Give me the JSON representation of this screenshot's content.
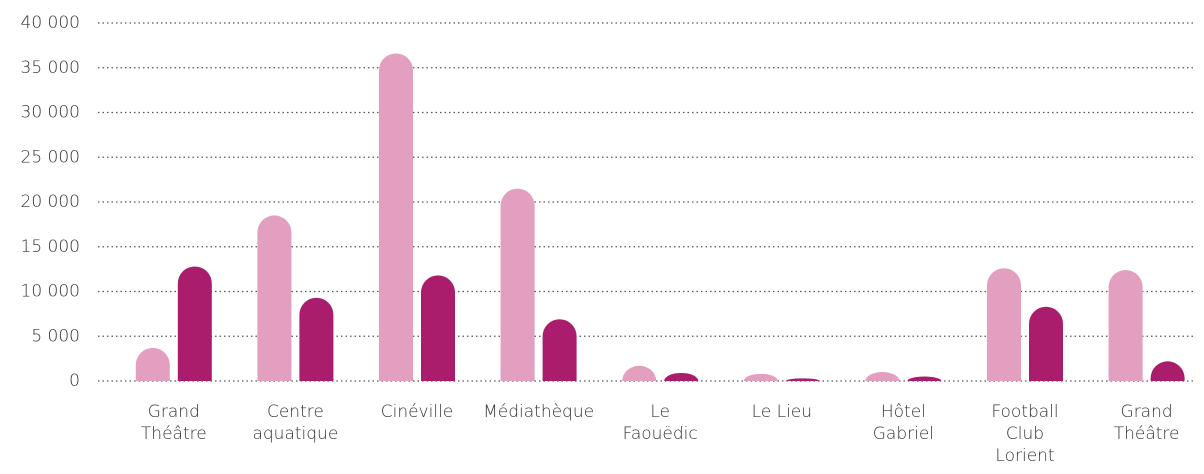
{
  "chart_data": {
    "type": "bar",
    "categories": [
      "Grand\nThéâtre",
      "Centre\naquatique",
      "Cinéville",
      "Médiathèque",
      "Le\nFaouëdic",
      "Le Lieu",
      "Hôtel\nGabriel",
      "Football\nClub\nLorient",
      "Grand\nThéâtre"
    ],
    "series": [
      {
        "color": "#e39fc0",
        "values": [
          3700,
          18500,
          36600,
          21500,
          1700,
          800,
          1000,
          12600,
          12400
        ]
      },
      {
        "color": "#a91d6c",
        "values": [
          12800,
          9300,
          11800,
          6900,
          900,
          300,
          500,
          8300,
          2200
        ]
      }
    ],
    "ylim": [
      0,
      40000
    ],
    "yticks": [
      {
        "value": 0,
        "label": "0"
      },
      {
        "value": 5000,
        "label": "5 000"
      },
      {
        "value": 10000,
        "label": "10 000"
      },
      {
        "value": 15000,
        "label": "15 000"
      },
      {
        "value": 20000,
        "label": "20 000"
      },
      {
        "value": 25000,
        "label": "25 000"
      },
      {
        "value": 30000,
        "label": "30 000"
      },
      {
        "value": 35000,
        "label": "35 000"
      },
      {
        "value": 40000,
        "label": "40 000"
      }
    ],
    "grid": true
  }
}
